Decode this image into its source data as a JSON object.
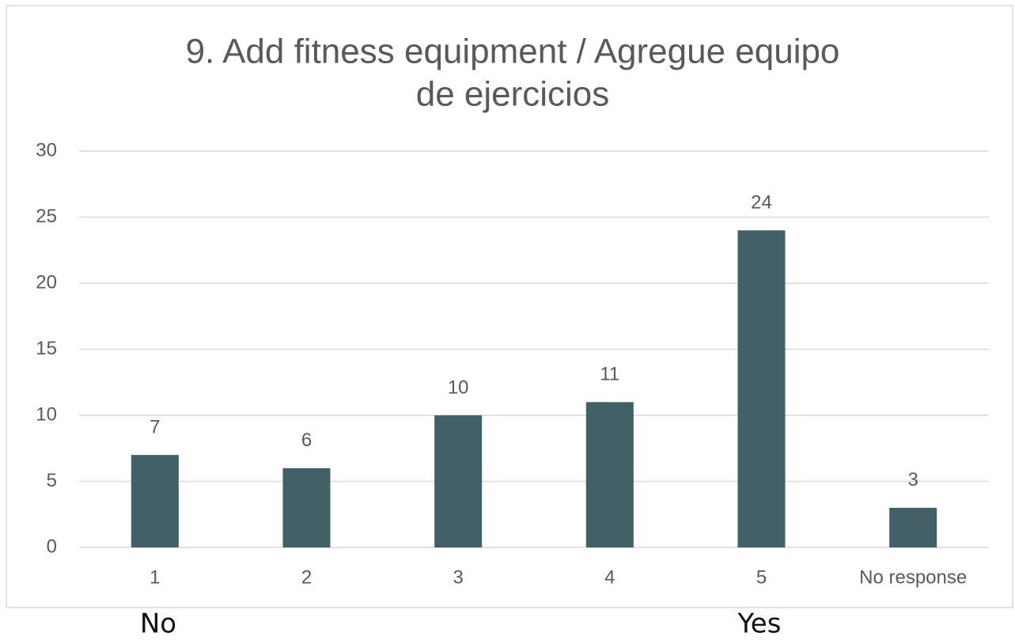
{
  "chart_data": {
    "type": "bar",
    "title": [
      "9. Add fitness equipment / Agregue equipo",
      "de ejercicios"
    ],
    "categories": [
      "1",
      "2",
      "3",
      "4",
      "5",
      "No response"
    ],
    "values": [
      7,
      6,
      10,
      11,
      24,
      3
    ],
    "color": "#436066",
    "ylim": [
      0,
      30
    ],
    "yticks": [
      0,
      5,
      10,
      15,
      20,
      25,
      30
    ],
    "grid": true,
    "annotations": [
      "No",
      "Yes"
    ]
  }
}
